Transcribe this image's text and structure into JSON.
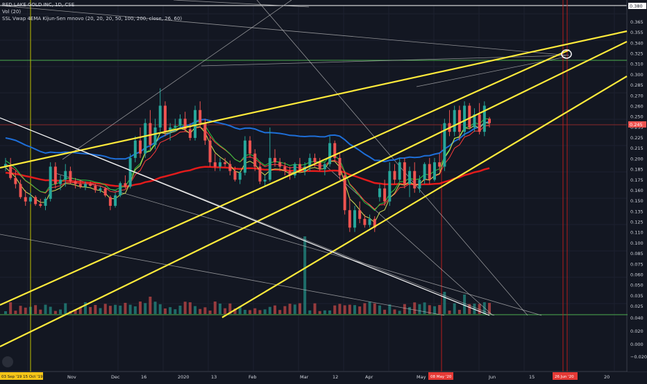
{
  "header": {
    "title": "RED LAKE GOLD INC, 1D, CSE",
    "vol": "Vol (20)",
    "indicator": "SSL Vwap 4EMA Kijun-Sen mnovo (20, 20, 20, 50, 100, 200, close, 26, 60)"
  },
  "colors": {
    "background": "#131722",
    "up": "#26a69a",
    "down": "#ef5350",
    "trendline": "#ffeb3b",
    "ma_blue": "#1e6fd9",
    "ma_red": "#e31b1b",
    "ma_green": "#2ecc40",
    "ma_yellow": "#d4e157",
    "ma_red_thin": "#ff3b3b",
    "crosshair_green": "#4caf50",
    "vline_red": "#b71c1c"
  },
  "chart_data": {
    "type": "candlestick",
    "price_axis_ticks": [
      "0.365",
      "0.355",
      "0.340",
      "0.325",
      "0.310",
      "0.300",
      "0.285",
      "0.270",
      "0.260",
      "0.250",
      "0.235",
      "0.225",
      "0.215",
      "0.200",
      "0.185",
      "0.175",
      "0.160",
      "0.150",
      "0.135",
      "0.125",
      "0.110",
      "0.100",
      "0.085",
      "0.075",
      "0.060",
      "0.050",
      "0.035",
      "0.025"
    ],
    "price_top_label": "0.380",
    "current_price": "0.245",
    "volume_axis_ticks": [
      "0.040",
      "0.020",
      "0.000",
      "−0.020"
    ],
    "time_axis_ticks": [
      "Nov",
      "Dec",
      "16",
      "2020",
      "13",
      "Feb",
      "Mar",
      "12",
      "Apr",
      "May",
      "Jun",
      "15",
      "20"
    ],
    "time_left_label": "03 Sep '19  15 Oct '19",
    "time_marker_1": "08 May '20",
    "time_marker_2": "26 Jun '20",
    "price_range": [
      0.025,
      0.38
    ],
    "candles": [
      {
        "o": 0.195,
        "h": 0.205,
        "l": 0.19,
        "c": 0.198
      },
      {
        "o": 0.195,
        "h": 0.205,
        "l": 0.18,
        "c": 0.182
      },
      {
        "o": 0.182,
        "h": 0.19,
        "l": 0.17,
        "c": 0.175
      },
      {
        "o": 0.175,
        "h": 0.18,
        "l": 0.158,
        "c": 0.16
      },
      {
        "o": 0.16,
        "h": 0.168,
        "l": 0.15,
        "c": 0.155
      },
      {
        "o": 0.155,
        "h": 0.165,
        "l": 0.152,
        "c": 0.16
      },
      {
        "o": 0.16,
        "h": 0.162,
        "l": 0.15,
        "c": 0.152
      },
      {
        "o": 0.152,
        "h": 0.158,
        "l": 0.148,
        "c": 0.15
      },
      {
        "o": 0.15,
        "h": 0.16,
        "l": 0.145,
        "c": 0.158
      },
      {
        "o": 0.158,
        "h": 0.2,
        "l": 0.155,
        "c": 0.195
      },
      {
        "o": 0.195,
        "h": 0.2,
        "l": 0.17,
        "c": 0.175
      },
      {
        "o": 0.175,
        "h": 0.185,
        "l": 0.168,
        "c": 0.18
      },
      {
        "o": 0.18,
        "h": 0.198,
        "l": 0.172,
        "c": 0.19
      },
      {
        "o": 0.19,
        "h": 0.195,
        "l": 0.175,
        "c": 0.178
      },
      {
        "o": 0.178,
        "h": 0.182,
        "l": 0.17,
        "c": 0.175
      },
      {
        "o": 0.175,
        "h": 0.18,
        "l": 0.17,
        "c": 0.172
      },
      {
        "o": 0.172,
        "h": 0.178,
        "l": 0.168,
        "c": 0.175
      },
      {
        "o": 0.175,
        "h": 0.178,
        "l": 0.172,
        "c": 0.173
      },
      {
        "o": 0.173,
        "h": 0.175,
        "l": 0.165,
        "c": 0.168
      },
      {
        "o": 0.168,
        "h": 0.172,
        "l": 0.165,
        "c": 0.17
      },
      {
        "o": 0.17,
        "h": 0.172,
        "l": 0.16,
        "c": 0.162
      },
      {
        "o": 0.16,
        "h": 0.162,
        "l": 0.145,
        "c": 0.15
      },
      {
        "o": 0.15,
        "h": 0.165,
        "l": 0.148,
        "c": 0.162
      },
      {
        "o": 0.162,
        "h": 0.178,
        "l": 0.16,
        "c": 0.176
      },
      {
        "o": 0.176,
        "h": 0.185,
        "l": 0.17,
        "c": 0.172
      },
      {
        "o": 0.172,
        "h": 0.21,
        "l": 0.17,
        "c": 0.205
      },
      {
        "o": 0.205,
        "h": 0.23,
        "l": 0.2,
        "c": 0.225
      },
      {
        "o": 0.225,
        "h": 0.24,
        "l": 0.205,
        "c": 0.21
      },
      {
        "o": 0.21,
        "h": 0.25,
        "l": 0.205,
        "c": 0.245
      },
      {
        "o": 0.245,
        "h": 0.26,
        "l": 0.215,
        "c": 0.22
      },
      {
        "o": 0.22,
        "h": 0.25,
        "l": 0.215,
        "c": 0.24
      },
      {
        "o": 0.24,
        "h": 0.285,
        "l": 0.235,
        "c": 0.265
      },
      {
        "o": 0.265,
        "h": 0.27,
        "l": 0.23,
        "c": 0.235
      },
      {
        "o": 0.235,
        "h": 0.245,
        "l": 0.225,
        "c": 0.24
      },
      {
        "o": 0.24,
        "h": 0.25,
        "l": 0.235,
        "c": 0.242
      },
      {
        "o": 0.242,
        "h": 0.255,
        "l": 0.238,
        "c": 0.25
      },
      {
        "o": 0.25,
        "h": 0.258,
        "l": 0.235,
        "c": 0.238
      },
      {
        "o": 0.238,
        "h": 0.245,
        "l": 0.225,
        "c": 0.228
      },
      {
        "o": 0.228,
        "h": 0.265,
        "l": 0.225,
        "c": 0.26
      },
      {
        "o": 0.26,
        "h": 0.27,
        "l": 0.24,
        "c": 0.245
      },
      {
        "o": 0.245,
        "h": 0.25,
        "l": 0.22,
        "c": 0.225
      },
      {
        "o": 0.225,
        "h": 0.23,
        "l": 0.195,
        "c": 0.2
      },
      {
        "o": 0.2,
        "h": 0.21,
        "l": 0.19,
        "c": 0.195
      },
      {
        "o": 0.195,
        "h": 0.205,
        "l": 0.19,
        "c": 0.2
      },
      {
        "o": 0.2,
        "h": 0.205,
        "l": 0.195,
        "c": 0.198
      },
      {
        "o": 0.198,
        "h": 0.202,
        "l": 0.185,
        "c": 0.19
      },
      {
        "o": 0.19,
        "h": 0.195,
        "l": 0.178,
        "c": 0.18
      },
      {
        "o": 0.18,
        "h": 0.19,
        "l": 0.175,
        "c": 0.188
      },
      {
        "o": 0.188,
        "h": 0.23,
        "l": 0.185,
        "c": 0.225
      },
      {
        "o": 0.225,
        "h": 0.23,
        "l": 0.205,
        "c": 0.21
      },
      {
        "o": 0.21,
        "h": 0.215,
        "l": 0.19,
        "c": 0.195
      },
      {
        "o": 0.195,
        "h": 0.2,
        "l": 0.175,
        "c": 0.178
      },
      {
        "o": 0.178,
        "h": 0.185,
        "l": 0.172,
        "c": 0.18
      },
      {
        "o": 0.18,
        "h": 0.24,
        "l": 0.178,
        "c": 0.205
      },
      {
        "o": 0.205,
        "h": 0.215,
        "l": 0.195,
        "c": 0.2
      },
      {
        "o": 0.2,
        "h": 0.205,
        "l": 0.19,
        "c": 0.195
      },
      {
        "o": 0.195,
        "h": 0.2,
        "l": 0.185,
        "c": 0.19
      },
      {
        "o": 0.19,
        "h": 0.195,
        "l": 0.18,
        "c": 0.185
      },
      {
        "o": 0.185,
        "h": 0.2,
        "l": 0.182,
        "c": 0.198
      },
      {
        "o": 0.198,
        "h": 0.205,
        "l": 0.188,
        "c": 0.19
      },
      {
        "o": 0.19,
        "h": 0.2,
        "l": 0.185,
        "c": 0.195
      },
      {
        "o": 0.195,
        "h": 0.21,
        "l": 0.19,
        "c": 0.205
      },
      {
        "o": 0.205,
        "h": 0.21,
        "l": 0.195,
        "c": 0.2
      },
      {
        "o": 0.2,
        "h": 0.205,
        "l": 0.19,
        "c": 0.192
      },
      {
        "o": 0.192,
        "h": 0.2,
        "l": 0.185,
        "c": 0.198
      },
      {
        "o": 0.198,
        "h": 0.23,
        "l": 0.195,
        "c": 0.222
      },
      {
        "o": 0.222,
        "h": 0.225,
        "l": 0.2,
        "c": 0.205
      },
      {
        "o": 0.205,
        "h": 0.21,
        "l": 0.18,
        "c": 0.185
      },
      {
        "o": 0.185,
        "h": 0.19,
        "l": 0.14,
        "c": 0.145
      },
      {
        "o": 0.145,
        "h": 0.16,
        "l": 0.12,
        "c": 0.125
      },
      {
        "o": 0.125,
        "h": 0.15,
        "l": 0.12,
        "c": 0.145
      },
      {
        "o": 0.145,
        "h": 0.155,
        "l": 0.13,
        "c": 0.135
      },
      {
        "o": 0.135,
        "h": 0.14,
        "l": 0.125,
        "c": 0.128
      },
      {
        "o": 0.128,
        "h": 0.14,
        "l": 0.125,
        "c": 0.135
      },
      {
        "o": 0.135,
        "h": 0.138,
        "l": 0.12,
        "c": 0.125
      },
      {
        "o": 0.16,
        "h": 0.175,
        "l": 0.155,
        "c": 0.17
      },
      {
        "o": 0.17,
        "h": 0.18,
        "l": 0.15,
        "c": 0.155
      },
      {
        "o": 0.155,
        "h": 0.2,
        "l": 0.15,
        "c": 0.19
      },
      {
        "o": 0.19,
        "h": 0.198,
        "l": 0.175,
        "c": 0.18
      },
      {
        "o": 0.18,
        "h": 0.205,
        "l": 0.178,
        "c": 0.2
      },
      {
        "o": 0.2,
        "h": 0.205,
        "l": 0.17,
        "c": 0.175
      },
      {
        "o": 0.175,
        "h": 0.195,
        "l": 0.16,
        "c": 0.19
      },
      {
        "o": 0.19,
        "h": 0.2,
        "l": 0.165,
        "c": 0.17
      },
      {
        "o": 0.17,
        "h": 0.185,
        "l": 0.165,
        "c": 0.18
      },
      {
        "o": 0.18,
        "h": 0.2,
        "l": 0.175,
        "c": 0.198
      },
      {
        "o": 0.198,
        "h": 0.205,
        "l": 0.175,
        "c": 0.18
      },
      {
        "o": 0.18,
        "h": 0.205,
        "l": 0.178,
        "c": 0.2
      },
      {
        "o": 0.2,
        "h": 0.21,
        "l": 0.19,
        "c": 0.195
      },
      {
        "o": 0.195,
        "h": 0.25,
        "l": 0.19,
        "c": 0.245
      },
      {
        "o": 0.245,
        "h": 0.26,
        "l": 0.23,
        "c": 0.235
      },
      {
        "o": 0.235,
        "h": 0.265,
        "l": 0.23,
        "c": 0.26
      },
      {
        "o": 0.26,
        "h": 0.265,
        "l": 0.225,
        "c": 0.235
      },
      {
        "o": 0.235,
        "h": 0.27,
        "l": 0.23,
        "c": 0.265
      },
      {
        "o": 0.265,
        "h": 0.268,
        "l": 0.238,
        "c": 0.24
      },
      {
        "o": 0.24,
        "h": 0.262,
        "l": 0.235,
        "c": 0.255
      },
      {
        "o": 0.255,
        "h": 0.268,
        "l": 0.232,
        "c": 0.235
      },
      {
        "o": 0.235,
        "h": 0.27,
        "l": 0.23,
        "c": 0.265
      },
      {
        "o": 0.25,
        "h": 0.252,
        "l": 0.24,
        "c": 0.245
      }
    ]
  }
}
